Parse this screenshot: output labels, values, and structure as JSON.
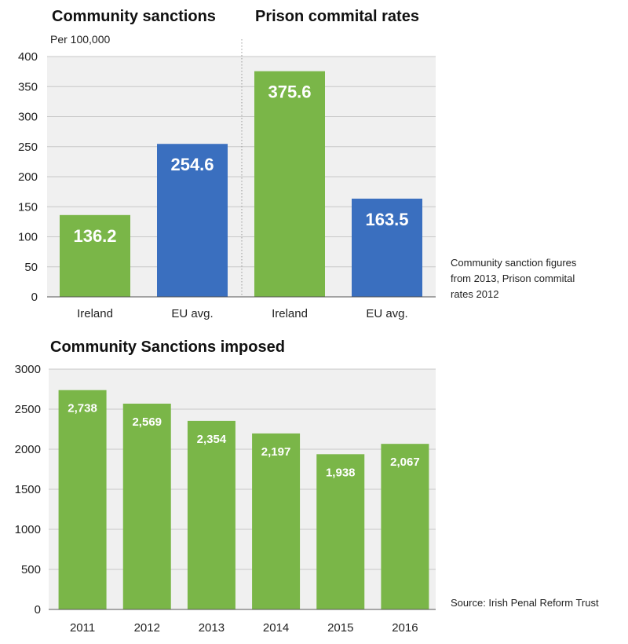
{
  "chart_data": [
    {
      "type": "bar",
      "title": "Community sanctions",
      "ylabel": "Per 100,000",
      "ylim": [
        0,
        400
      ],
      "yticks": [
        0,
        50,
        100,
        150,
        200,
        250,
        300,
        350,
        400
      ],
      "categories": [
        "Ireland",
        "EU avg."
      ],
      "values": [
        136.2,
        254.6
      ],
      "value_labels": [
        "136.2",
        "254.6"
      ],
      "bar_colors": [
        "#7ab648",
        "#3a6fbf"
      ]
    },
    {
      "type": "bar",
      "title": "Prison commital rates",
      "ylim": [
        0,
        400
      ],
      "categories": [
        "Ireland",
        "EU avg."
      ],
      "values": [
        375.6,
        163.5
      ],
      "value_labels": [
        "375.6",
        "163.5"
      ],
      "bar_colors": [
        "#7ab648",
        "#3a6fbf"
      ]
    },
    {
      "type": "bar",
      "title": "Community Sanctions imposed",
      "ylim": [
        0,
        3000
      ],
      "yticks": [
        0,
        500,
        1000,
        1500,
        2000,
        2500,
        3000
      ],
      "categories": [
        "2011",
        "2012",
        "2013",
        "2014",
        "2015",
        "2016"
      ],
      "values": [
        2738,
        2569,
        2354,
        2197,
        1938,
        2067
      ],
      "value_labels": [
        "2,738",
        "2,569",
        "2,354",
        "2,197",
        "1,938",
        "2,067"
      ],
      "bar_colors": [
        "#7ab648"
      ]
    }
  ],
  "notes": {
    "footnote_lines": [
      "Community sanction figures",
      "from 2013, Prison commital",
      "rates 2012"
    ],
    "source": "Source: Irish Penal Reform Trust"
  },
  "colors": {
    "panel_bg": "#f0f0f0",
    "grid": "#c8c8c8",
    "green": "#7ab648",
    "blue": "#3a6fbf"
  }
}
